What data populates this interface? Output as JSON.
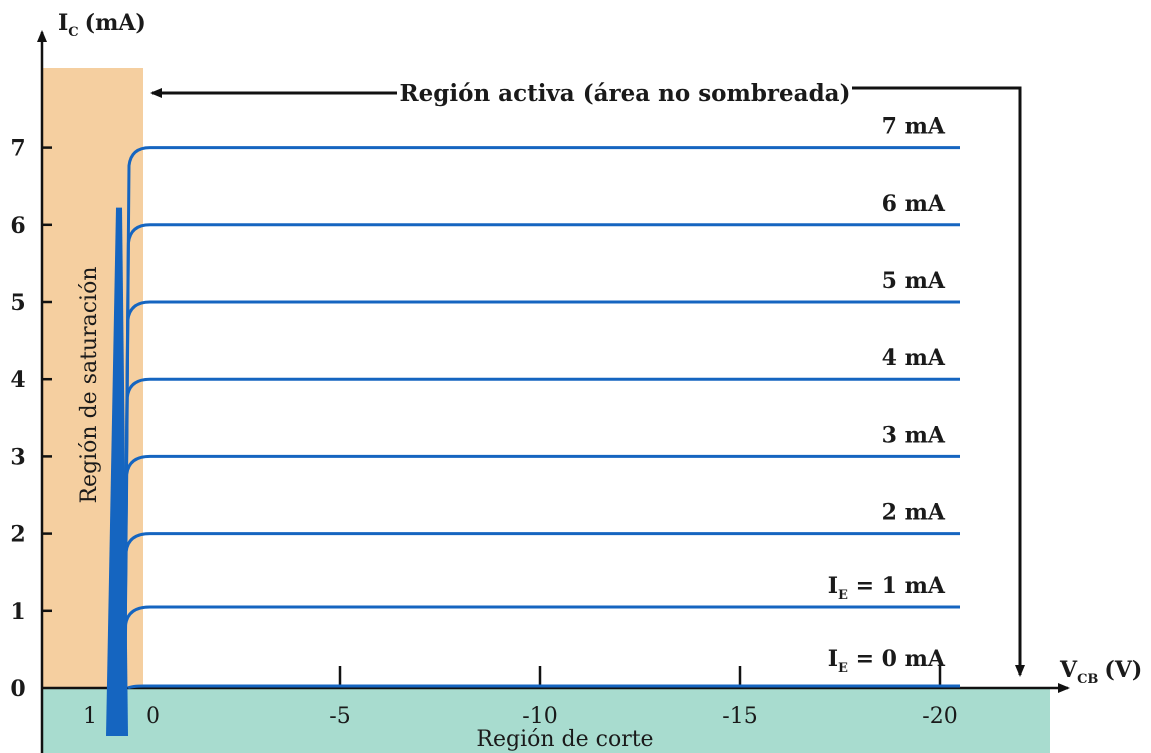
{
  "chart_data": {
    "type": "line",
    "xlabel": "V",
    "xlabel_sub": "CB",
    "xlabel_unit": "(V)",
    "ylabel": "I",
    "ylabel_sub": "C",
    "ylabel_unit": "(mA)",
    "xlim": [
      2,
      -21
    ],
    "ylim": [
      0,
      8
    ],
    "x_ticks": [
      {
        "value": 1,
        "label": "1"
      },
      {
        "value": 0,
        "label": "0"
      },
      {
        "value": -5,
        "label": "-5"
      },
      {
        "value": -10,
        "label": "-10"
      },
      {
        "value": -15,
        "label": "-15"
      },
      {
        "value": -20,
        "label": "-20"
      }
    ],
    "y_ticks": [
      {
        "value": 0,
        "label": "0"
      },
      {
        "value": 1,
        "label": "1"
      },
      {
        "value": 2,
        "label": "2"
      },
      {
        "value": 3,
        "label": "3"
      },
      {
        "value": 4,
        "label": "4"
      },
      {
        "value": 5,
        "label": "5"
      },
      {
        "value": 6,
        "label": "6"
      },
      {
        "value": 7,
        "label": "7"
      }
    ],
    "series": [
      {
        "label": "I",
        "label_sub": "E",
        "label_rest": " = 0 mA",
        "value": 0
      },
      {
        "label": "I",
        "label_sub": "E",
        "label_rest": " = 1 mA",
        "value": 1.05
      },
      {
        "label": "2 mA",
        "value": 2
      },
      {
        "label": "3 mA",
        "value": 3
      },
      {
        "label": "4 mA",
        "value": 4
      },
      {
        "label": "5 mA",
        "value": 5
      },
      {
        "label": "6 mA",
        "value": 6
      },
      {
        "label": "7 mA",
        "value": 7
      }
    ],
    "x_end": -20.5,
    "annotations": {
      "saturation": "Región de saturación",
      "cutoff": "Región de corte",
      "active": "Región activa (área no sombreada)"
    },
    "colors": {
      "curve": "#1565c0",
      "saturation_fill": "#f5cfa0",
      "cutoff_fill": "#a8dccf",
      "axis": "#111111"
    }
  }
}
